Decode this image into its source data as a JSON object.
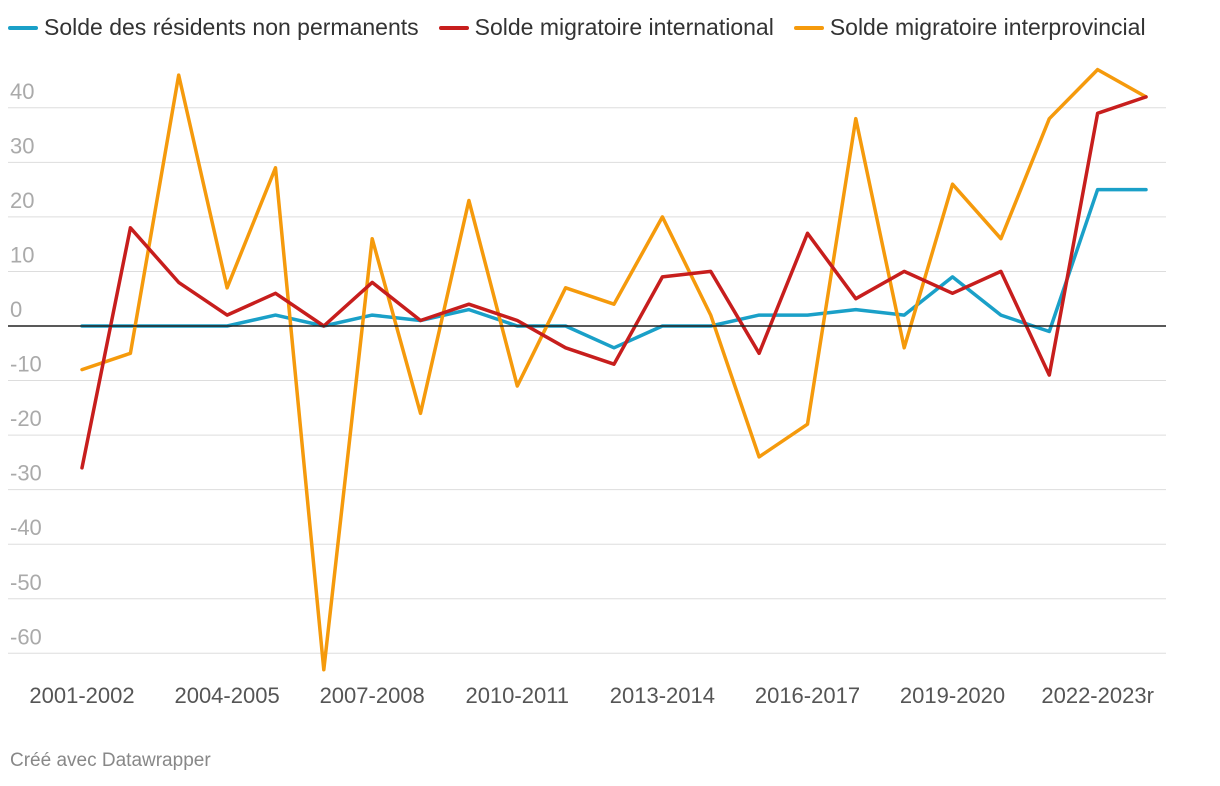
{
  "colors": {
    "series_nonperm": "#1aa0c8",
    "series_international": "#c71e1d",
    "series_interprov": "#f59a0c",
    "grid": "#dddddd",
    "zero_line": "#222222",
    "tick_text": "#aaaaaa",
    "xtick_text": "#555555"
  },
  "credit": "Créé avec Datawrapper",
  "chart_data": {
    "type": "line",
    "title": "",
    "xlabel": "",
    "ylabel": "",
    "ylim": [
      -65,
      47
    ],
    "yticks": [
      40,
      30,
      20,
      10,
      0,
      -10,
      -20,
      -30,
      -40,
      -50,
      -60
    ],
    "ytick_labels": [
      "40",
      "30",
      "20",
      "10",
      "0",
      "-10",
      "-20",
      "-30",
      "-40",
      "-50",
      "-60"
    ],
    "grid": true,
    "legend_position": "top-left",
    "categories": [
      "2001-2002",
      "2002-2003",
      "2003-2004",
      "2004-2005",
      "2005-2006",
      "2006-2007",
      "2007-2008",
      "2008-2009",
      "2009-2010",
      "2010-2011",
      "2011-2012",
      "2012-2013",
      "2013-2014",
      "2014-2015",
      "2015-2016",
      "2016-2017",
      "2017-2018",
      "2018-2019",
      "2019-2020",
      "2020-2021",
      "2021-2022",
      "2022-2023r",
      "2023-2024"
    ],
    "xtick_indices": [
      0,
      3,
      6,
      9,
      12,
      15,
      18,
      21
    ],
    "xtick_labels": [
      "2001-2002",
      "2004-2005",
      "2007-2008",
      "2010-2011",
      "2013-2014",
      "2016-2017",
      "2019-2020",
      "2022-2023r"
    ],
    "series": [
      {
        "name": "Solde des résidents non permanents",
        "color_key": "series_nonperm",
        "values": [
          0,
          0,
          0,
          0,
          2,
          0,
          2,
          1,
          3,
          0,
          0,
          -4,
          0,
          0,
          2,
          2,
          3,
          2,
          9,
          2,
          -1,
          25,
          25
        ]
      },
      {
        "name": "Solde migratoire interprovincial",
        "color_key": "series_interprov",
        "values": [
          -8,
          -5,
          46,
          7,
          29,
          -63,
          16,
          -16,
          23,
          -11,
          7,
          4,
          20,
          2,
          -24,
          -18,
          38,
          -4,
          26,
          16,
          38,
          47,
          42
        ]
      },
      {
        "name": "Solde migratoire international",
        "color_key": "series_international",
        "values": [
          -26,
          18,
          8,
          2,
          6,
          0,
          8,
          1,
          4,
          1,
          -4,
          -7,
          9,
          10,
          -5,
          17,
          5,
          10,
          6,
          10,
          -9,
          39,
          42
        ]
      }
    ],
    "legend": [
      {
        "label": "Solde des résidents non permanents",
        "color_key": "series_nonperm"
      },
      {
        "label": "Solde migratoire international",
        "color_key": "series_international"
      },
      {
        "label": "Solde migratoire interprovincial",
        "color_key": "series_interprov"
      }
    ]
  }
}
